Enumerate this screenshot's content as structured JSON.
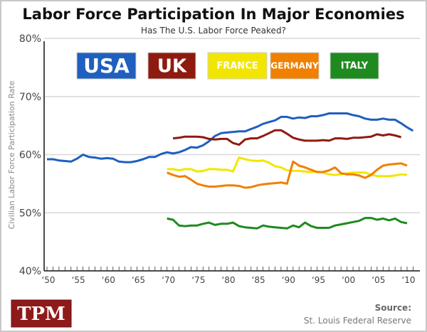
{
  "chart_data": {
    "type": "line",
    "title": "Labor Force Participation In Major Economies",
    "subtitle": "Has The U.S. Labor Force Peaked?",
    "ylabel": "Civilian Labor Force Participation Rate",
    "xlabel": "",
    "xlim": [
      1950,
      2011
    ],
    "ylim": [
      40,
      80
    ],
    "y_ticks": [
      40,
      50,
      60,
      70,
      80
    ],
    "y_tick_labels": [
      "40%",
      "50%",
      "60%",
      "70%",
      "80%"
    ],
    "x_ticks": [
      1950,
      1955,
      1960,
      1965,
      1970,
      1975,
      1980,
      1985,
      1990,
      1995,
      2000,
      2005,
      2010
    ],
    "x_tick_labels": [
      "‘50",
      "‘55",
      "‘60",
      "‘65",
      "‘70",
      "‘75",
      "‘80",
      "‘85",
      "‘90",
      "‘95",
      "‘00",
      "‘05",
      "‘10"
    ],
    "grid": "horizontal",
    "legend_placement": "top",
    "series": [
      {
        "name": "USA",
        "color": "#1f5fbf",
        "start": 1950,
        "values": [
          59.2,
          59.2,
          59.0,
          58.9,
          58.8,
          59.3,
          60.0,
          59.6,
          59.5,
          59.3,
          59.4,
          59.3,
          58.8,
          58.7,
          58.7,
          58.9,
          59.2,
          59.6,
          59.6,
          60.1,
          60.4,
          60.2,
          60.4,
          60.8,
          61.3,
          61.2,
          61.6,
          62.3,
          63.2,
          63.7,
          63.8,
          63.9,
          64.0,
          64.0,
          64.4,
          64.8,
          65.3,
          65.6,
          65.9,
          66.5,
          66.5,
          66.2,
          66.4,
          66.3,
          66.6,
          66.6,
          66.8,
          67.1,
          67.1,
          67.1,
          67.1,
          66.8,
          66.6,
          66.2,
          66.0,
          66.0,
          66.2,
          66.0,
          66.0,
          65.4,
          64.7,
          64.1
        ]
      },
      {
        "name": "UK",
        "color": "#8f1a10",
        "start": 1971,
        "values": [
          62.8,
          62.9,
          63.1,
          63.1,
          63.1,
          63.0,
          62.7,
          62.6,
          62.7,
          62.7,
          62.0,
          61.7,
          62.6,
          62.8,
          62.8,
          63.2,
          63.7,
          64.2,
          64.2,
          63.6,
          62.9,
          62.6,
          62.4,
          62.4,
          62.4,
          62.5,
          62.4,
          62.8,
          62.8,
          62.7,
          62.9,
          62.9,
          63.0,
          63.1,
          63.5,
          63.3,
          63.5,
          63.3,
          63.0
        ]
      },
      {
        "name": "FRANCE",
        "color": "#f2e600",
        "start": 1970,
        "values": [
          57.5,
          57.5,
          57.3,
          57.5,
          57.5,
          57.1,
          57.2,
          57.5,
          57.5,
          57.4,
          57.4,
          57.1,
          59.5,
          59.2,
          59.0,
          58.9,
          59.0,
          58.6,
          58.0,
          57.8,
          57.3,
          57.2,
          57.2,
          57.1,
          57.0,
          57.1,
          56.9,
          56.6,
          56.5,
          56.6,
          56.8,
          56.9,
          56.9,
          56.9,
          56.6,
          56.3,
          56.3,
          56.3,
          56.4,
          56.6,
          56.5
        ]
      },
      {
        "name": "GERMANY",
        "color": "#f08000",
        "start": 1970,
        "values": [
          56.9,
          56.5,
          56.2,
          56.3,
          55.7,
          55.0,
          54.7,
          54.5,
          54.5,
          54.6,
          54.7,
          54.7,
          54.6,
          54.3,
          54.4,
          54.7,
          54.9,
          55.0,
          55.1,
          55.2,
          55.0,
          58.8,
          58.1,
          57.8,
          57.4,
          57.0,
          57.0,
          57.3,
          57.8,
          56.8,
          56.6,
          56.6,
          56.4,
          56.0,
          56.5,
          57.4,
          58.1,
          58.3,
          58.4,
          58.5,
          58.1
        ]
      },
      {
        "name": "ITALY",
        "color": "#1f8a1f",
        "start": 1970,
        "values": [
          49.0,
          48.8,
          47.8,
          47.7,
          47.8,
          47.8,
          48.1,
          48.3,
          47.9,
          48.1,
          48.1,
          48.3,
          47.7,
          47.5,
          47.4,
          47.3,
          47.8,
          47.6,
          47.5,
          47.4,
          47.3,
          47.8,
          47.5,
          48.3,
          47.7,
          47.4,
          47.4,
          47.4,
          47.8,
          48.0,
          48.2,
          48.4,
          48.6,
          49.1,
          49.1,
          48.8,
          49.0,
          48.7,
          49.0,
          48.4,
          48.2
        ]
      }
    ]
  },
  "legend_text_colors": {
    "USA": "#ffffff",
    "UK": "#ffffff",
    "FRANCE": "#ffffff",
    "GERMANY": "#ffffff",
    "ITALY": "#ffffff"
  },
  "footer": {
    "logo_text": "TPM",
    "logo_color": "#8f1a1a",
    "source_label": "Source:",
    "source_text": "St. Louis Federal Reserve"
  }
}
